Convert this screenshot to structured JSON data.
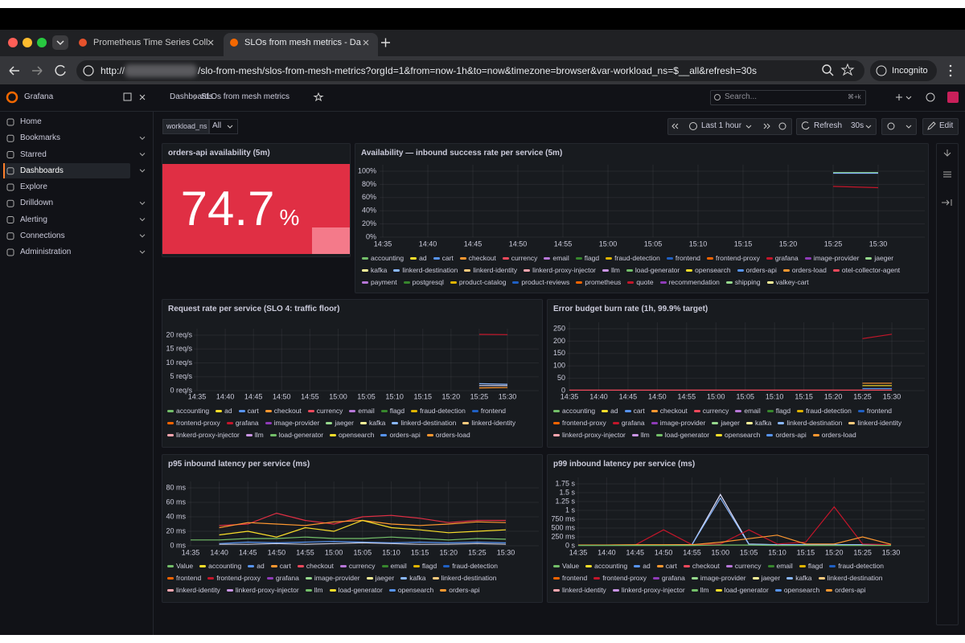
{
  "browser": {
    "tabs": [
      "Prometheus Time Series Coll",
      "SLOs from mesh metrics - Da"
    ],
    "url_scheme": "http://",
    "url_path": "/slo-from-mesh/slos-from-mesh-metrics?orgId=1&from=now-1h&to=now&timezone=browser&var-workload_ns=$__all&refresh=30s",
    "profile": "Incognito"
  },
  "sidebar": {
    "brand": "Grafana",
    "items": [
      "Home",
      "Bookmarks",
      "Starred",
      "Dashboards",
      "Explore",
      "Drilldown",
      "Alerting",
      "Connections",
      "Administration"
    ]
  },
  "topbar": {
    "breadcrumbs": [
      "Dashboards",
      "SLOs from mesh metrics"
    ],
    "search": "Search...",
    "shortcut": "⌘+k"
  },
  "toolbar": {
    "variable_label": "workload_ns",
    "variable_value": "All",
    "time_range": "Last 1 hour",
    "refresh": "Refresh",
    "refresh_interval": "30s",
    "edit": "Edit"
  },
  "palette": [
    "#73bf69",
    "#fade2a",
    "#5794f2",
    "#ff9830",
    "#f2495c",
    "#b877d9",
    "#37872d",
    "#e0b400",
    "#1f60c4",
    "#fa6400",
    "#c4162a",
    "#8f3bb8",
    "#96d98d",
    "#fff899",
    "#8ab8ff",
    "#ffcb7d",
    "#ffa6b0",
    "#ca95e5"
  ],
  "panels": [
    {
      "type": "stat",
      "title": "orders-api availability (5m)",
      "value": 74.7,
      "unit": "%",
      "color": "#e02f44"
    },
    {
      "type": "timeseries",
      "title": "Availability — inbound success rate per service (5m)",
      "x": [
        "14:35",
        "14:40",
        "14:45",
        "14:50",
        "14:55",
        "15:00",
        "15:05",
        "15:10",
        "15:15",
        "15:20",
        "15:25",
        "15:30"
      ],
      "ylim": [
        0,
        100
      ],
      "yticks": [
        {
          "value": 0,
          "label": "0%"
        },
        {
          "value": 20,
          "label": "20%"
        },
        {
          "value": 40,
          "label": "40%"
        },
        {
          "value": 60,
          "label": "60%"
        },
        {
          "value": 80,
          "label": "80%"
        },
        {
          "value": 100,
          "label": "100%"
        }
      ],
      "series": [
        {
          "color": "#73bf69",
          "values": [
            null,
            null,
            null,
            null,
            null,
            null,
            null,
            null,
            null,
            null,
            98,
            98
          ]
        },
        {
          "color": "#8ab8ff",
          "values": [
            null,
            null,
            null,
            null,
            null,
            null,
            null,
            null,
            null,
            null,
            97,
            97
          ]
        },
        {
          "color": "#c4162a",
          "values": [
            null,
            null,
            null,
            null,
            null,
            null,
            null,
            null,
            null,
            null,
            77,
            75
          ]
        }
      ],
      "legend": [
        "accounting",
        "ad",
        "cart",
        "checkout",
        "currency",
        "email",
        "flagd",
        "fraud-detection",
        "frontend",
        "frontend-proxy",
        "grafana",
        "image-provider",
        "jaeger",
        "kafka",
        "linkerd-destination",
        "linkerd-identity",
        "linkerd-proxy-injector",
        "llm",
        "load-generator",
        "opensearch",
        "orders-api",
        "orders-load",
        "otel-collector-agent",
        "payment",
        "postgresql",
        "product-catalog",
        "product-reviews",
        "prometheus",
        "quote",
        "recommendation",
        "shipping",
        "valkey-cart"
      ]
    },
    {
      "type": "timeseries",
      "title": "Request rate per service (SLO 4: traffic floor)",
      "x": [
        "14:35",
        "14:40",
        "14:45",
        "14:50",
        "14:55",
        "15:00",
        "15:05",
        "15:10",
        "15:15",
        "15:20",
        "15:25",
        "15:30"
      ],
      "ylim": [
        0,
        20
      ],
      "yticks": [
        {
          "value": 0,
          "label": "0 req/s"
        },
        {
          "value": 5,
          "label": "5 req/s"
        },
        {
          "value": 10,
          "label": "10 req/s"
        },
        {
          "value": 15,
          "label": "15 req/s"
        },
        {
          "value": 20,
          "label": "20 req/s"
        }
      ],
      "series": [
        {
          "color": "#c4162a",
          "values": [
            null,
            null,
            null,
            null,
            null,
            null,
            null,
            null,
            null,
            null,
            20.3,
            20.2
          ]
        },
        {
          "color": "#8ab8ff",
          "values": [
            null,
            null,
            null,
            null,
            null,
            null,
            null,
            null,
            null,
            null,
            2.5,
            2.3
          ]
        },
        {
          "color": "#e0e0ff",
          "values": [
            null,
            null,
            null,
            null,
            null,
            null,
            null,
            null,
            null,
            null,
            1.8,
            1.8
          ]
        },
        {
          "color": "#ff9830",
          "values": [
            null,
            null,
            null,
            null,
            null,
            null,
            null,
            null,
            null,
            null,
            1,
            1.1
          ]
        }
      ],
      "legend": [
        "accounting",
        "ad",
        "cart",
        "checkout",
        "currency",
        "email",
        "flagd",
        "fraud-detection",
        "frontend",
        "frontend-proxy",
        "grafana",
        "image-provider",
        "jaeger",
        "kafka",
        "linkerd-destination",
        "linkerd-identity",
        "linkerd-proxy-injector",
        "llm",
        "load-generator",
        "opensearch",
        "orders-api",
        "orders-load"
      ]
    },
    {
      "type": "timeseries",
      "title": "Error budget burn rate (1h, 99.9% target)",
      "x": [
        "14:35",
        "14:40",
        "14:45",
        "14:50",
        "14:55",
        "15:00",
        "15:05",
        "15:10",
        "15:15",
        "15:20",
        "15:25",
        "15:30"
      ],
      "ylim": [
        0,
        250
      ],
      "yticks": [
        0,
        50,
        100,
        150,
        200,
        250
      ],
      "series": [
        {
          "color": "#c4162a",
          "values": [
            null,
            null,
            null,
            null,
            null,
            null,
            null,
            null,
            null,
            null,
            210,
            228
          ]
        },
        {
          "color": "#ff9830",
          "values": [
            null,
            null,
            null,
            null,
            null,
            null,
            null,
            null,
            null,
            null,
            30,
            30
          ]
        },
        {
          "color": "#fade2a",
          "values": [
            null,
            null,
            null,
            null,
            null,
            null,
            null,
            null,
            null,
            null,
            20,
            20
          ]
        },
        {
          "color": "#5794f2",
          "values": [
            null,
            null,
            null,
            null,
            null,
            null,
            null,
            null,
            null,
            null,
            8,
            8
          ]
        },
        {
          "color": "#f2495c",
          "values": [
            2,
            2,
            2,
            2,
            2,
            2,
            2,
            2,
            2,
            2,
            2,
            2
          ]
        }
      ],
      "legend": [
        "accounting",
        "ad",
        "cart",
        "checkout",
        "currency",
        "email",
        "flagd",
        "fraud-detection",
        "frontend",
        "frontend-proxy",
        "grafana",
        "image-provider",
        "jaeger",
        "kafka",
        "linkerd-destination",
        "linkerd-identity",
        "linkerd-proxy-injector",
        "llm",
        "load-generator",
        "opensearch",
        "orders-api",
        "orders-load"
      ]
    },
    {
      "type": "timeseries",
      "title": "p95 inbound latency per service (ms)",
      "x": [
        "14:35",
        "14:40",
        "14:45",
        "14:50",
        "14:55",
        "15:00",
        "15:05",
        "15:10",
        "15:15",
        "15:20",
        "15:25",
        "15:30"
      ],
      "ylim": [
        0,
        80
      ],
      "yticks": [
        {
          "value": 0,
          "label": "0 ms"
        },
        {
          "value": 20,
          "label": "20 ms"
        },
        {
          "value": 40,
          "label": "40 ms"
        },
        {
          "value": 60,
          "label": "60 ms"
        },
        {
          "value": 80,
          "label": "80 ms"
        }
      ],
      "series": [
        {
          "color": "#e02f44",
          "values": [
            null,
            28,
            30,
            45,
            35,
            30,
            40,
            42,
            38,
            32,
            35,
            35
          ]
        },
        {
          "color": "#ff9830",
          "values": [
            null,
            25,
            32,
            30,
            28,
            33,
            35,
            30,
            28,
            30,
            33,
            32
          ]
        },
        {
          "color": "#fade2a",
          "values": [
            null,
            15,
            20,
            12,
            25,
            20,
            35,
            25,
            22,
            18,
            20,
            22
          ]
        },
        {
          "color": "#73bf69",
          "values": [
            8,
            8,
            10,
            10,
            12,
            10,
            10,
            12,
            10,
            8,
            10,
            9
          ]
        },
        {
          "color": "#5794f2",
          "values": [
            null,
            3,
            5,
            4,
            5,
            6,
            5,
            4,
            5,
            4,
            5,
            4
          ]
        },
        {
          "color": "#ccccdc",
          "values": [
            null,
            2,
            2,
            3,
            2,
            3,
            4,
            3,
            2,
            2,
            3,
            2
          ]
        }
      ],
      "legend": [
        "Value",
        "accounting",
        "ad",
        "cart",
        "checkout",
        "currency",
        "email",
        "flagd",
        "fraud-detection",
        "frontend",
        "frontend-proxy",
        "grafana",
        "image-provider",
        "jaeger",
        "kafka",
        "linkerd-destination",
        "linkerd-identity",
        "linkerd-proxy-injector",
        "llm",
        "load-generator",
        "opensearch",
        "orders-api"
      ]
    },
    {
      "type": "timeseries",
      "title": "p99 inbound latency per service (ms)",
      "x": [
        "14:35",
        "14:40",
        "14:45",
        "14:50",
        "14:55",
        "15:00",
        "15:05",
        "15:10",
        "15:15",
        "15:20",
        "15:25",
        "15:30"
      ],
      "ylim": [
        0,
        1.75
      ],
      "yticks": [
        {
          "value": 0,
          "label": "0 s"
        },
        {
          "value": 0.25,
          "label": "250 ms"
        },
        {
          "value": 0.5,
          "label": "500 ms"
        },
        {
          "value": 0.75,
          "label": "750 ms"
        },
        {
          "value": 1,
          "label": "1 s"
        },
        {
          "value": 1.25,
          "label": "1.25 s"
        },
        {
          "value": 1.5,
          "label": "1.5 s"
        },
        {
          "value": 1.75,
          "label": "1.75 s"
        }
      ],
      "series": [
        {
          "color": "#e0e0ff",
          "values": [
            0.02,
            0.02,
            0.02,
            0.02,
            0.03,
            1.45,
            0.05,
            0.03,
            0.03,
            0.03,
            0.03,
            0.02
          ]
        },
        {
          "color": "#8ab8ff",
          "values": [
            0.02,
            0.02,
            0.02,
            0.02,
            0.03,
            1.35,
            0.04,
            0.03,
            0.03,
            0.03,
            0.03,
            0.02
          ]
        },
        {
          "color": "#c4162a",
          "values": [
            0.02,
            0.02,
            0.02,
            0.45,
            0.03,
            0.05,
            0.45,
            0.05,
            0.1,
            1.1,
            0.05,
            0.03
          ]
        },
        {
          "color": "#ff9830",
          "values": [
            0.02,
            0.02,
            0.03,
            0.03,
            0.03,
            0.1,
            0.2,
            0.3,
            0.05,
            0.05,
            0.25,
            0.04
          ]
        },
        {
          "color": "#73bf69",
          "values": [
            0.01,
            0.01,
            0.01,
            0.01,
            0.01,
            0.02,
            0.02,
            0.01,
            0.01,
            0.01,
            0.01,
            0.01
          ]
        }
      ],
      "legend": [
        "Value",
        "accounting",
        "ad",
        "cart",
        "checkout",
        "currency",
        "email",
        "flagd",
        "fraud-detection",
        "frontend",
        "frontend-proxy",
        "grafana",
        "image-provider",
        "jaeger",
        "kafka",
        "linkerd-destination",
        "linkerd-identity",
        "linkerd-proxy-injector",
        "llm",
        "load-generator",
        "opensearch",
        "orders-api"
      ]
    }
  ]
}
